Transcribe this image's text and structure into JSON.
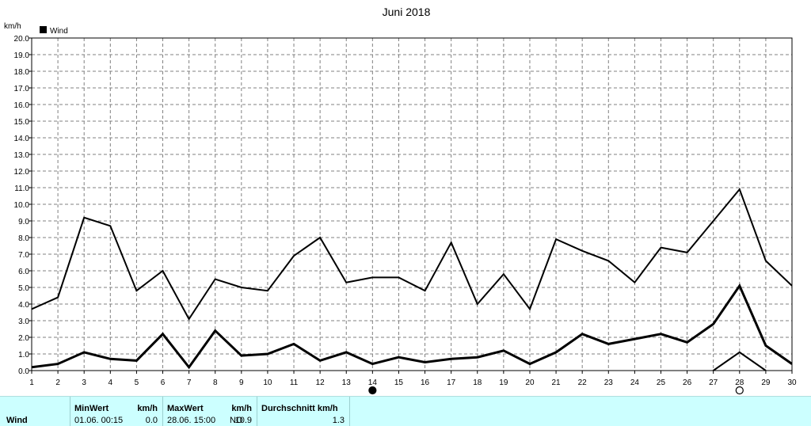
{
  "chart_data": {
    "type": "line",
    "title": "Juni 2018",
    "ylabel": "km/h",
    "legend": {
      "label": "Wind",
      "position": "top-left"
    },
    "ylim": [
      0,
      20
    ],
    "xlim": [
      1,
      30
    ],
    "yticks": [
      "0.0",
      "1.0",
      "2.0",
      "3.0",
      "4.0",
      "5.0",
      "6.0",
      "7.0",
      "8.0",
      "9.0",
      "10.0",
      "11.0",
      "12.0",
      "13.0",
      "14.0",
      "15.0",
      "16.0",
      "17.0",
      "18.0",
      "19.0",
      "20.0"
    ],
    "xticks": [
      "1",
      "2",
      "3",
      "4",
      "5",
      "6",
      "7",
      "8",
      "9",
      "10",
      "11",
      "12",
      "13",
      "14",
      "15",
      "16",
      "17",
      "18",
      "19",
      "20",
      "21",
      "22",
      "23",
      "24",
      "25",
      "26",
      "27",
      "28",
      "29",
      "30"
    ],
    "grid": true,
    "x": [
      1,
      2,
      3,
      4,
      5,
      6,
      7,
      8,
      9,
      10,
      11,
      12,
      13,
      14,
      15,
      16,
      17,
      18,
      19,
      20,
      21,
      22,
      23,
      24,
      25,
      26,
      27,
      28,
      29,
      30
    ],
    "series": [
      {
        "values": [
          3.7,
          4.4,
          9.2,
          8.7,
          4.8,
          6.0,
          3.1,
          5.5,
          5.0,
          4.8,
          6.9,
          8.0,
          5.3,
          5.6,
          5.6,
          4.8,
          7.7,
          4.0,
          5.8,
          3.7,
          7.9,
          7.2,
          6.6,
          5.3,
          7.4,
          7.1,
          9.0,
          10.9,
          6.6,
          5.1
        ]
      },
      {
        "values": [
          0.2,
          0.4,
          1.1,
          0.7,
          0.6,
          2.2,
          0.2,
          2.4,
          0.9,
          1.0,
          1.6,
          0.6,
          1.1,
          0.4,
          0.8,
          0.5,
          0.7,
          0.8,
          1.2,
          0.4,
          1.1,
          2.2,
          1.6,
          1.9,
          2.2,
          1.7,
          2.8,
          5.1,
          1.5,
          0.4
        ]
      },
      {
        "x": [
          26,
          27,
          28,
          29
        ],
        "values": [
          -1.0,
          0.0,
          1.1,
          0.0
        ]
      }
    ],
    "moon_markers": [
      {
        "day": 14,
        "phase": "full"
      },
      {
        "day": 28,
        "phase": "new"
      }
    ]
  },
  "footer": {
    "row_label": "Wind",
    "min_header": "MinWert",
    "min_unit": "km/h",
    "min_time": "01.06.  00:15",
    "min_value": "0.0",
    "max_header": "MaxWert",
    "max_unit": "km/h",
    "max_time": "28.06.  15:00",
    "max_dir": "NO",
    "max_value": "10.9",
    "avg_header": "Durchschnitt km/h",
    "avg_value": "1.3"
  },
  "colors": {
    "footer_bg": "#ccffff",
    "line": "#000000"
  }
}
